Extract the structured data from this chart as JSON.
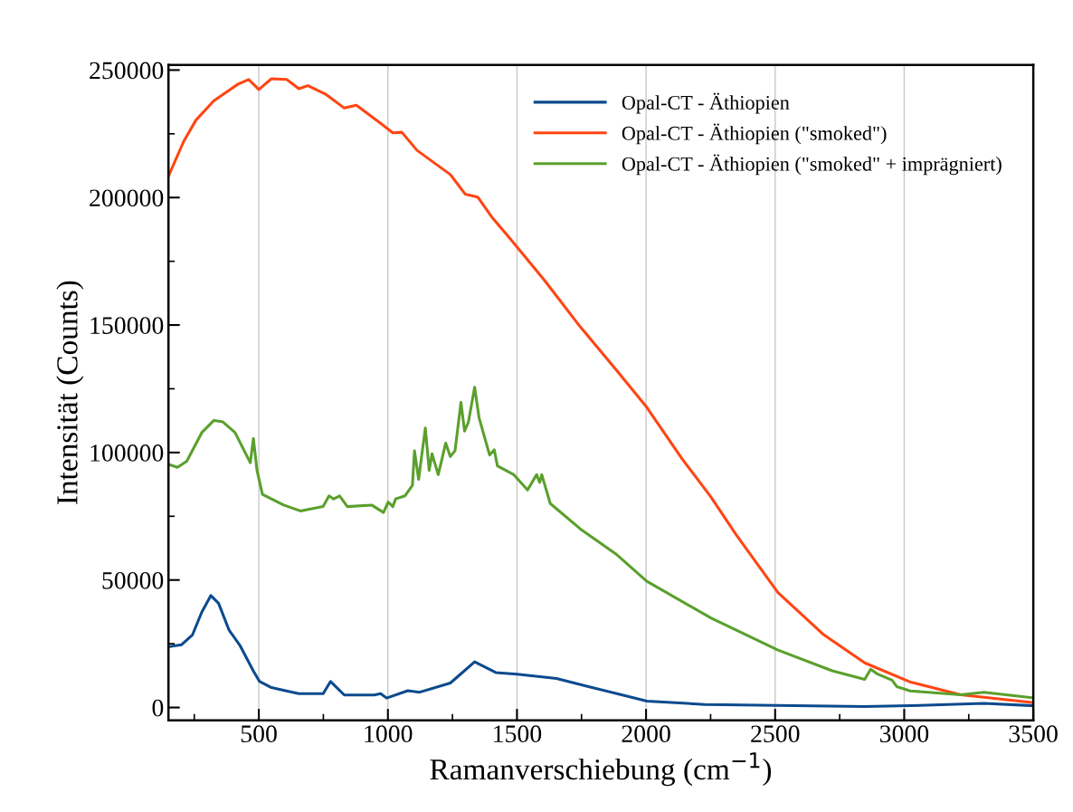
{
  "chart_data": {
    "type": "line",
    "xlabel": "Ramanverschiebung (cm$^{−1}$)",
    "ylabel": "Intensität (Counts)",
    "xlim": [
      150,
      3500
    ],
    "xticks": [
      500,
      1000,
      1500,
      2000,
      2500,
      3000,
      3500
    ],
    "ylim": [
      -5000,
      252000
    ],
    "yticks": [
      0,
      50000,
      100000,
      150000,
      200000,
      250000
    ],
    "grid": "x",
    "legend": "top right",
    "line_style": "solid",
    "marker": "none",
    "series": [
      {
        "name": "Opal-CT - Äthiopien",
        "color": "#0c4a8e",
        "x": [
          150,
          200,
          243,
          279,
          314,
          344,
          385,
          426,
          479,
          502,
          549,
          655,
          749,
          778,
          831,
          947,
          972,
          995,
          1077,
          1123,
          1242,
          1336,
          1418,
          1500,
          1653,
          1770,
          1887,
          2003,
          2227,
          2847,
          3023,
          3309,
          3500
        ],
        "values": [
          23800,
          24600,
          28500,
          37400,
          43900,
          40900,
          30300,
          24500,
          14300,
          10300,
          7800,
          5400,
          5400,
          10200,
          4900,
          4900,
          5400,
          3700,
          6600,
          6000,
          9600,
          17900,
          13700,
          13100,
          11400,
          8400,
          5400,
          2500,
          1200,
          400,
          700,
          1600,
          700
        ]
      },
      {
        "name": "Opal-CT - Äthiopien (\"smoked\")",
        "color": "#ff4513",
        "x": [
          150,
          209,
          256,
          326,
          420,
          461,
          500,
          549,
          608,
          655,
          690,
          761,
          831,
          878,
          972,
          1019,
          1054,
          1113,
          1242,
          1300,
          1348,
          1406,
          1476,
          1606,
          1746,
          1887,
          2003,
          2139,
          2251,
          2350,
          2511,
          2685,
          2847,
          3023,
          3219,
          3500
        ],
        "values": [
          208400,
          222000,
          230300,
          238000,
          244500,
          246300,
          242400,
          246600,
          246300,
          242700,
          243900,
          240400,
          235100,
          236200,
          229100,
          225400,
          225600,
          218500,
          209000,
          201300,
          200200,
          191900,
          183600,
          167600,
          149200,
          132100,
          117700,
          97600,
          82600,
          67600,
          45100,
          28800,
          17500,
          10000,
          5000,
          1900
        ]
      },
      {
        "name": "Opal-CT - Äthiopien (\"smoked\" + imprägniert)",
        "color": "#5aa02c",
        "x": [
          150,
          185,
          221,
          279,
          326,
          361,
          408,
          467,
          479,
          493,
          514,
          596,
          661,
          749,
          772,
          790,
          813,
          843,
          937,
          983,
          1001,
          1019,
          1030,
          1066,
          1095,
          1103,
          1119,
          1145,
          1160,
          1171,
          1195,
          1224,
          1242,
          1260,
          1283,
          1297,
          1312,
          1336,
          1353,
          1394,
          1412,
          1424,
          1488,
          1541,
          1576,
          1588,
          1596,
          1629,
          1746,
          1887,
          2003,
          2251,
          2511,
          2721,
          2847,
          2870,
          2897,
          2953,
          2971,
          3023,
          3219,
          3309,
          3500
        ],
        "values": [
          95400,
          94200,
          96600,
          107800,
          112600,
          112000,
          107800,
          96000,
          105500,
          93000,
          83600,
          79400,
          77100,
          78800,
          83000,
          81800,
          83000,
          78800,
          79400,
          76500,
          80600,
          78800,
          81800,
          83000,
          87100,
          100700,
          89500,
          109600,
          93000,
          99500,
          91300,
          103700,
          98400,
          100700,
          119700,
          108400,
          112000,
          125600,
          113700,
          99000,
          101100,
          94800,
          91300,
          85300,
          91300,
          88300,
          91300,
          80000,
          70000,
          59900,
          49500,
          35100,
          22500,
          14400,
          11000,
          15000,
          13100,
          10700,
          8200,
          6500,
          5000,
          6000,
          3800
        ]
      }
    ]
  }
}
